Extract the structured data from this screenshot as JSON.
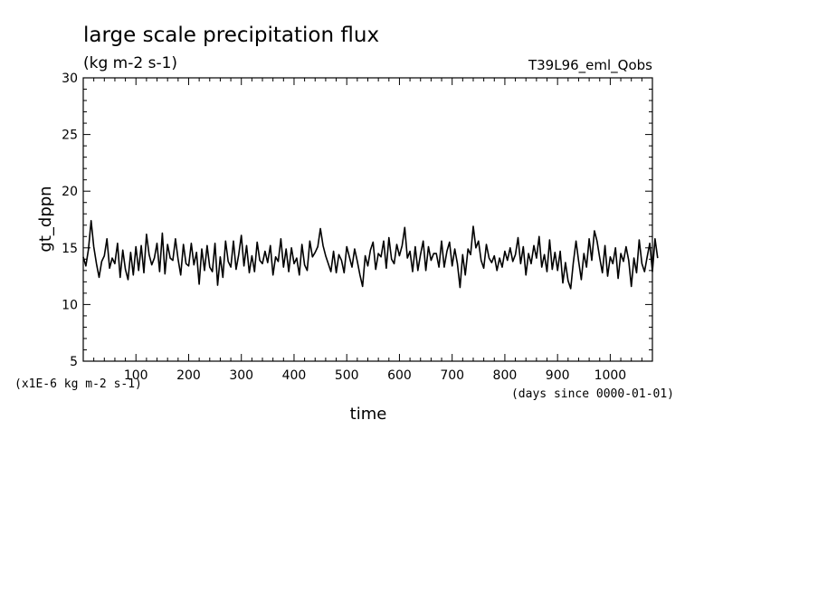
{
  "figure": {
    "title": "large scale precipitation flux",
    "units": "(kg m-2 s-1)",
    "experiment": "T39L96_eml_Qobs",
    "scale_note": "(x1E-6 kg m-2 s-1)",
    "time_note": "(days since 0000-01-01)"
  },
  "chart_data": {
    "type": "line",
    "xlabel": "time",
    "ylabel": "gt_dppn",
    "xlim": [
      0,
      1080
    ],
    "ylim": [
      5,
      30
    ],
    "x_ticks": [
      100,
      200,
      300,
      400,
      500,
      600,
      700,
      800,
      900,
      1000
    ],
    "y_ticks": [
      5,
      10,
      15,
      20,
      25,
      30
    ],
    "x_step": 5,
    "series": [
      {
        "color": "#000000",
        "values": [
          14.2,
          13.4,
          14.9,
          17.4,
          15.1,
          13.6,
          12.4,
          13.8,
          14.3,
          15.8,
          13.2,
          14.1,
          13.6,
          15.4,
          12.4,
          14.8,
          13.1,
          12.2,
          14.6,
          12.6,
          15.1,
          13.0,
          15.2,
          12.8,
          16.2,
          14.4,
          13.5,
          14.1,
          15.4,
          12.9,
          16.3,
          12.7,
          15.3,
          14.1,
          13.9,
          15.8,
          14.0,
          12.6,
          15.3,
          13.6,
          13.4,
          15.4,
          13.5,
          14.6,
          11.8,
          14.9,
          13.0,
          15.2,
          13.3,
          12.9,
          15.4,
          11.7,
          14.2,
          12.4,
          15.6,
          13.8,
          13.3,
          15.6,
          13.1,
          14.4,
          16.1,
          13.4,
          15.2,
          12.8,
          14.3,
          12.9,
          15.5,
          13.9,
          13.6,
          14.7,
          13.7,
          15.2,
          12.6,
          14.2,
          13.8,
          15.8,
          13.3,
          14.9,
          12.9,
          15.0,
          13.6,
          14.1,
          12.6,
          15.3,
          13.5,
          13.0,
          15.6,
          14.2,
          14.6,
          15.1,
          16.7,
          15.2,
          14.3,
          13.6,
          12.9,
          14.7,
          12.8,
          14.4,
          13.9,
          12.8,
          15.1,
          14.2,
          13.3,
          14.9,
          13.8,
          12.6,
          11.6,
          14.3,
          13.4,
          14.8,
          15.5,
          13.1,
          14.5,
          14.2,
          15.6,
          13.2,
          15.9,
          14.0,
          13.6,
          15.3,
          14.3,
          15.2,
          16.8,
          14.1,
          14.7,
          12.9,
          15.1,
          13.0,
          14.4,
          15.6,
          13.0,
          15.1,
          13.9,
          14.5,
          14.5,
          13.3,
          15.6,
          13.3,
          14.7,
          15.5,
          13.4,
          14.9,
          13.6,
          11.5,
          14.4,
          12.6,
          14.9,
          14.4,
          16.9,
          15.0,
          15.6,
          13.9,
          13.2,
          15.3,
          14.1,
          13.7,
          14.3,
          13.0,
          14.1,
          13.3,
          14.7,
          13.9,
          15.0,
          13.8,
          14.4,
          15.9,
          13.6,
          15.1,
          12.6,
          14.5,
          13.6,
          15.2,
          14.1,
          16.0,
          13.3,
          14.4,
          12.9,
          15.7,
          13.1,
          14.6,
          13.0,
          14.7,
          11.9,
          13.7,
          12.1,
          11.4,
          13.7,
          15.6,
          13.8,
          12.2,
          14.5,
          13.3,
          15.8,
          13.9,
          16.5,
          15.6,
          14.1,
          12.8,
          15.2,
          12.5,
          14.2,
          13.6,
          15.0,
          12.3,
          14.5,
          13.8,
          15.1,
          13.9,
          11.6,
          14.1,
          12.8,
          15.7,
          13.6,
          12.9,
          14.2,
          15.4,
          12.9,
          15.8,
          14.1
        ]
      }
    ]
  }
}
